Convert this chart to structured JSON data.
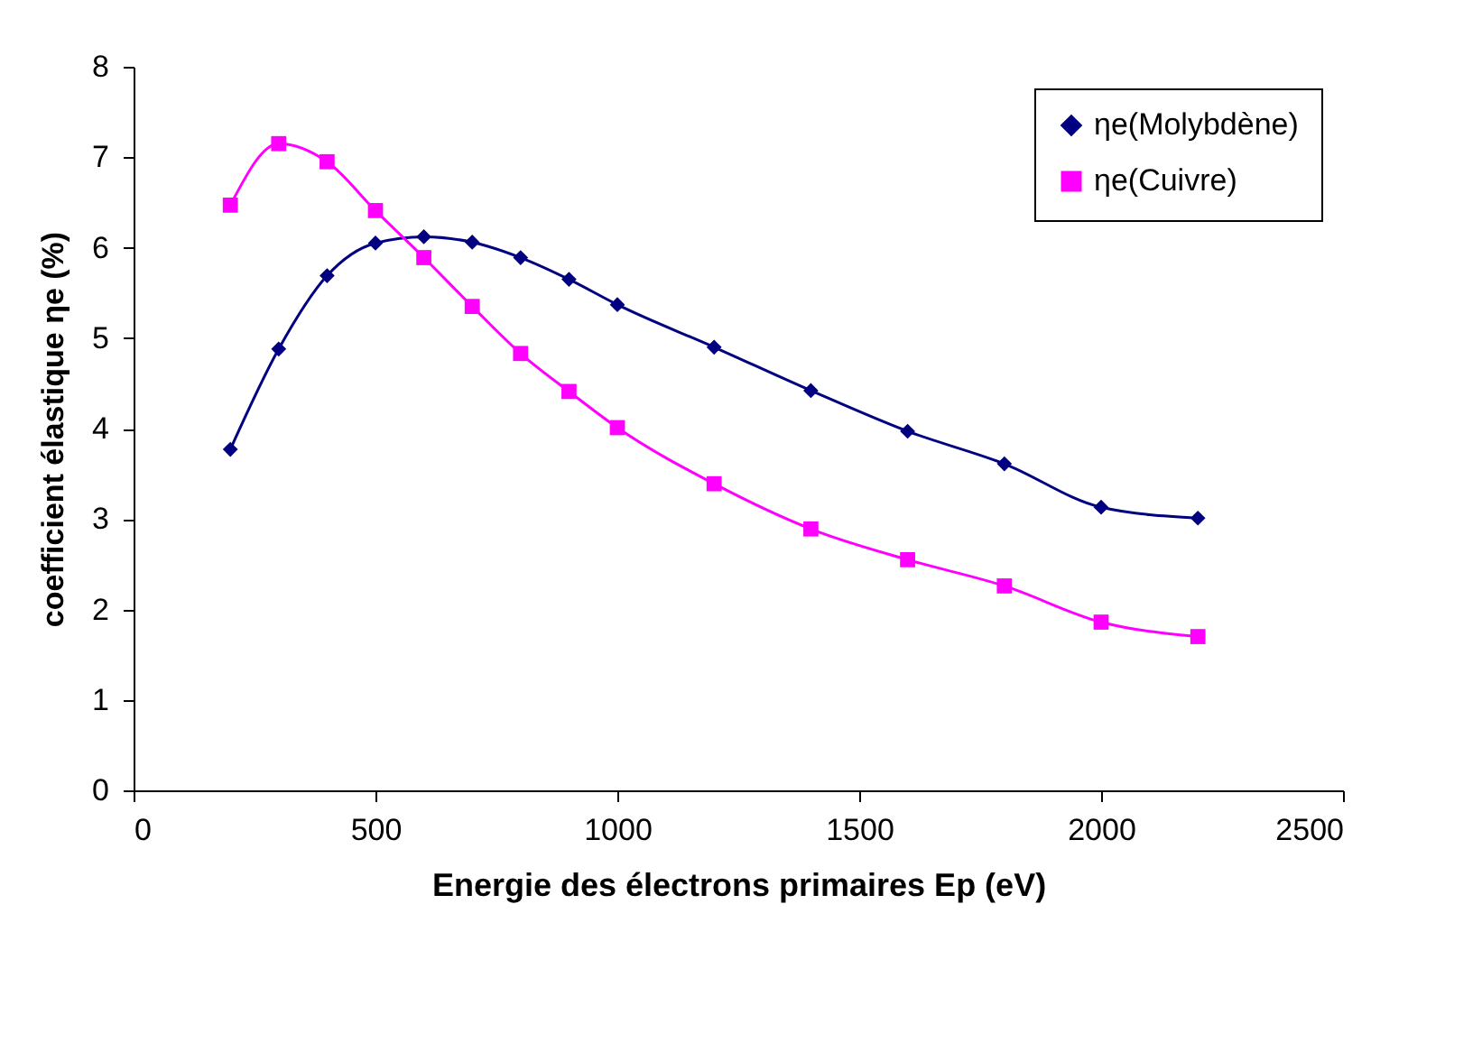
{
  "chart_data": {
    "type": "line",
    "xlabel": "Energie des électrons primaires Ep (eV)",
    "ylabel": "coefficient élastique ηe (%)",
    "x": [
      200,
      300,
      400,
      500,
      600,
      700,
      800,
      900,
      1000,
      1200,
      1400,
      1600,
      1800,
      2000,
      2200
    ],
    "series": [
      {
        "name": "ηe(Molybdène)",
        "color": "#000080",
        "marker": "diamond",
        "values": [
          3.77,
          4.88,
          5.69,
          6.05,
          6.12,
          6.06,
          5.89,
          5.65,
          5.37,
          4.9,
          4.42,
          3.97,
          3.61,
          3.13,
          3.01
        ]
      },
      {
        "name": "ηe(Cuivre)",
        "color": "#ff00ff",
        "marker": "square",
        "values": [
          6.47,
          7.15,
          6.95,
          6.41,
          5.89,
          5.35,
          4.83,
          4.41,
          4.01,
          3.39,
          2.89,
          2.55,
          2.26,
          1.86,
          1.7
        ]
      }
    ],
    "xlim": [
      0,
      2500
    ],
    "xticks": [
      0,
      500,
      1000,
      1500,
      2000,
      2500
    ],
    "ylim": [
      0,
      8
    ],
    "yticks": [
      0,
      1,
      2,
      3,
      4,
      5,
      6,
      7,
      8
    ],
    "grid": false,
    "legend": "top right",
    "line_style": "solid"
  }
}
